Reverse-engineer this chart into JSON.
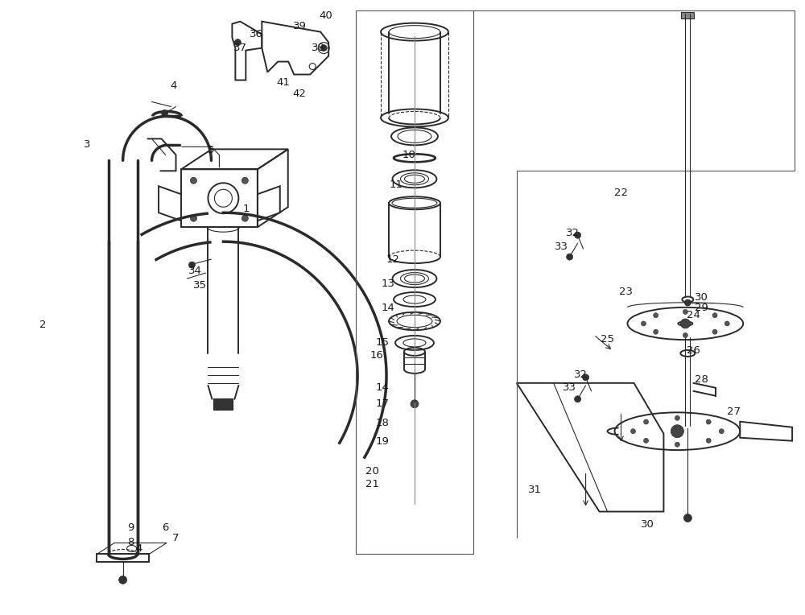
{
  "background_color": "#ffffff",
  "line_color": "#2a2a2a",
  "text_color": "#1a1a1a",
  "figsize": [
    10.0,
    7.64
  ],
  "dpi": 100,
  "labels": [
    [
      "1",
      3.05,
      5.05
    ],
    [
      "2",
      0.52,
      3.6
    ],
    [
      "3",
      1.08,
      5.85
    ],
    [
      "4",
      2.15,
      6.58
    ],
    [
      "4",
      1.72,
      0.82
    ],
    [
      "5",
      2.62,
      5.78
    ],
    [
      "6",
      2.05,
      1.08
    ],
    [
      "7",
      2.18,
      0.95
    ],
    [
      "8",
      1.62,
      0.9
    ],
    [
      "9",
      1.62,
      1.08
    ],
    [
      "10",
      5.08,
      5.72
    ],
    [
      "11",
      4.92,
      5.35
    ],
    [
      "12",
      4.88,
      4.42
    ],
    [
      "13",
      4.82,
      4.12
    ],
    [
      "14",
      4.82,
      3.82
    ],
    [
      "15",
      4.75,
      3.38
    ],
    [
      "16",
      4.68,
      3.22
    ],
    [
      "14",
      4.75,
      2.82
    ],
    [
      "17",
      4.75,
      2.62
    ],
    [
      "18",
      4.75,
      2.38
    ],
    [
      "19",
      4.75,
      2.15
    ],
    [
      "20",
      4.62,
      1.78
    ],
    [
      "21",
      4.62,
      1.62
    ],
    [
      "22",
      7.72,
      5.25
    ],
    [
      "23",
      7.78,
      4.02
    ],
    [
      "24",
      8.62,
      3.72
    ],
    [
      "25",
      7.55,
      3.42
    ],
    [
      "26",
      8.62,
      3.28
    ],
    [
      "27",
      9.12,
      2.52
    ],
    [
      "28",
      8.72,
      2.92
    ],
    [
      "29",
      8.72,
      3.82
    ],
    [
      "30",
      8.72,
      3.95
    ],
    [
      "31",
      6.65,
      1.55
    ],
    [
      "30",
      8.05,
      1.12
    ],
    [
      "32",
      7.12,
      4.75
    ],
    [
      "33",
      6.98,
      4.58
    ],
    [
      "32",
      7.22,
      2.98
    ],
    [
      "33",
      7.08,
      2.82
    ],
    [
      "34",
      2.42,
      4.28
    ],
    [
      "35",
      2.48,
      4.1
    ],
    [
      "36",
      3.18,
      7.22
    ],
    [
      "37",
      2.98,
      7.05
    ],
    [
      "38",
      3.95,
      7.05
    ],
    [
      "39",
      3.72,
      7.32
    ],
    [
      "40",
      4.05,
      7.45
    ],
    [
      "41",
      3.52,
      6.62
    ],
    [
      "42",
      3.72,
      6.48
    ]
  ]
}
